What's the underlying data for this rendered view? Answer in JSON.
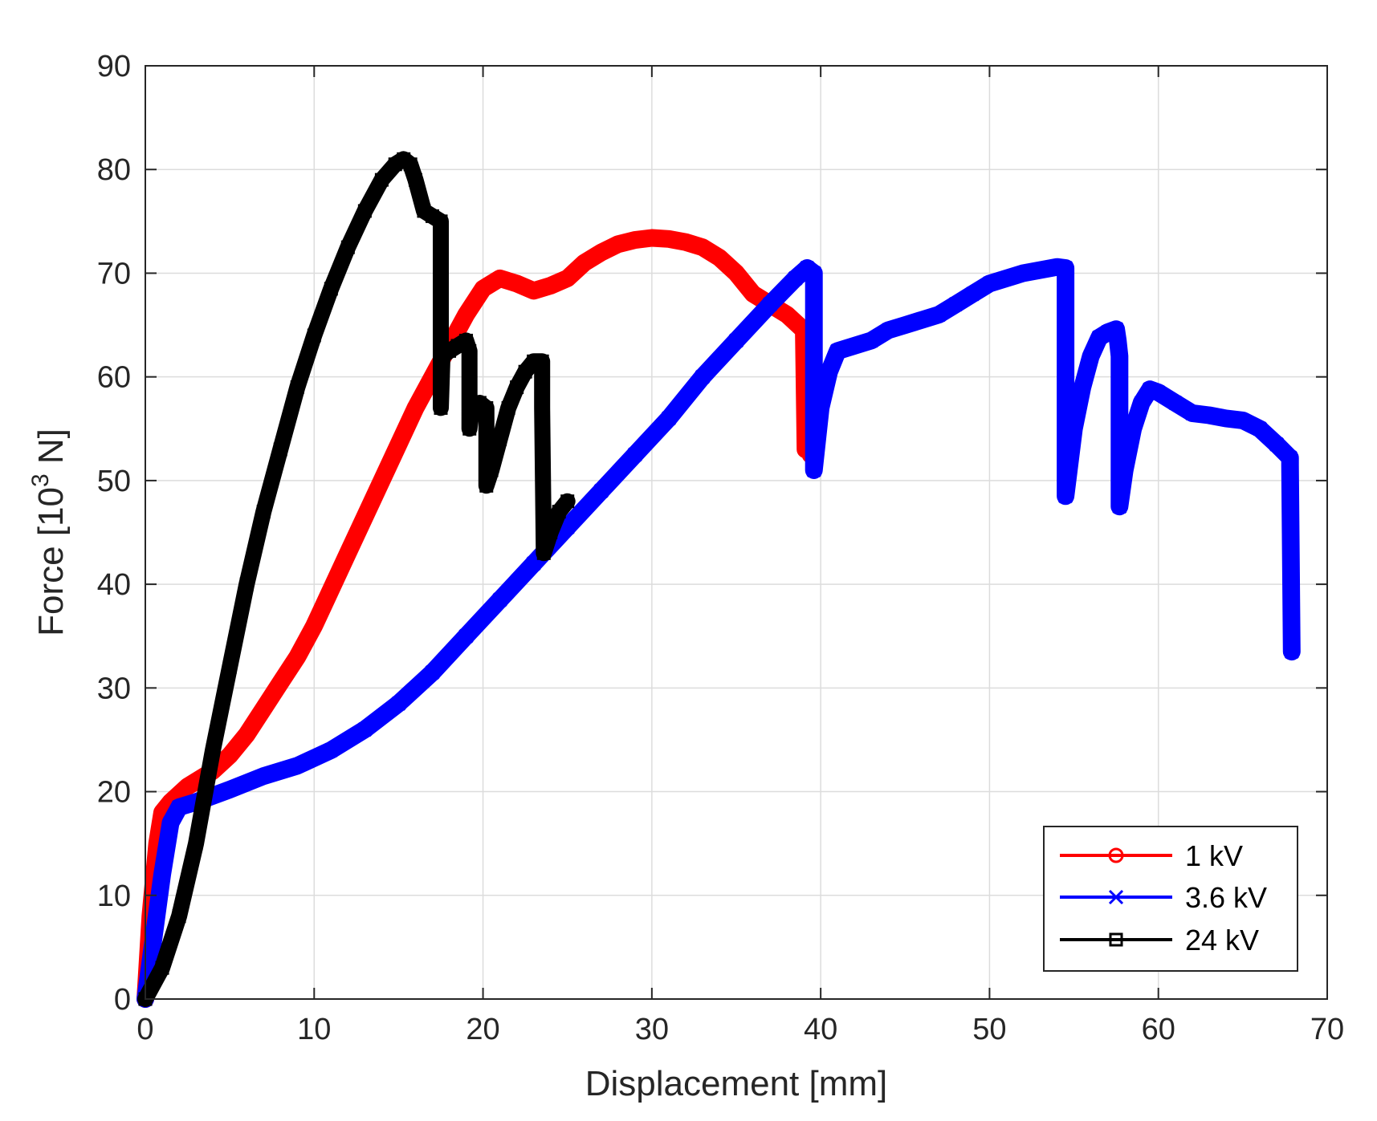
{
  "chart_data": {
    "type": "line",
    "title": "",
    "xlabel": "Displacement [mm]",
    "ylabel_prefix": "Force [10",
    "ylabel_exp": "3",
    "ylabel_suffix": " N]",
    "xlim": [
      0,
      70
    ],
    "ylim": [
      0,
      90
    ],
    "xticks": [
      0,
      10,
      20,
      30,
      40,
      50,
      60,
      70
    ],
    "yticks": [
      0,
      10,
      20,
      30,
      40,
      50,
      60,
      70,
      80,
      90
    ],
    "xtick_labels": [
      "0",
      "10",
      "20",
      "30",
      "40",
      "50",
      "60",
      "70"
    ],
    "ytick_labels": [
      "0",
      "10",
      "20",
      "30",
      "40",
      "50",
      "60",
      "70",
      "80",
      "90"
    ],
    "grid": true,
    "legend_position": "bottom-right",
    "series": [
      {
        "name": "1 kV",
        "color": "#ff0000",
        "marker": "circle",
        "points": [
          [
            0,
            0
          ],
          [
            0.3,
            8
          ],
          [
            0.7,
            15
          ],
          [
            1,
            18
          ],
          [
            1.5,
            19
          ],
          [
            2.5,
            20.5
          ],
          [
            4,
            22
          ],
          [
            5,
            23.5
          ],
          [
            6,
            25.5
          ],
          [
            7,
            28
          ],
          [
            8,
            30.5
          ],
          [
            9,
            33
          ],
          [
            10,
            36
          ],
          [
            12,
            43
          ],
          [
            14,
            50
          ],
          [
            16,
            57
          ],
          [
            18,
            63
          ],
          [
            19,
            66
          ],
          [
            20,
            68.5
          ],
          [
            21,
            69.5
          ],
          [
            22,
            69
          ],
          [
            23,
            68.3
          ],
          [
            24,
            68.8
          ],
          [
            25,
            69.5
          ],
          [
            26,
            71
          ],
          [
            27,
            72
          ],
          [
            28,
            72.8
          ],
          [
            29,
            73.2
          ],
          [
            30,
            73.4
          ],
          [
            31,
            73.3
          ],
          [
            32,
            73
          ],
          [
            33,
            72.5
          ],
          [
            34,
            71.5
          ],
          [
            35,
            70
          ],
          [
            36,
            68
          ],
          [
            37,
            67
          ],
          [
            38,
            66
          ],
          [
            39,
            64.5
          ],
          [
            39.1,
            53
          ],
          [
            39.3,
            56
          ],
          [
            39.4,
            52.5
          ]
        ]
      },
      {
        "name": "3.6 kV",
        "color": "#0000ff",
        "marker": "x",
        "points": [
          [
            0,
            0
          ],
          [
            0.5,
            6
          ],
          [
            1,
            12
          ],
          [
            1.5,
            17
          ],
          [
            2,
            18.5
          ],
          [
            3,
            19
          ],
          [
            5,
            20.2
          ],
          [
            7,
            21.5
          ],
          [
            9,
            22.5
          ],
          [
            11,
            24
          ],
          [
            13,
            26
          ],
          [
            15,
            28.5
          ],
          [
            17,
            31.5
          ],
          [
            19,
            35
          ],
          [
            21,
            38.5
          ],
          [
            23,
            42
          ],
          [
            25,
            45.5
          ],
          [
            27,
            49
          ],
          [
            29,
            52.5
          ],
          [
            31,
            56
          ],
          [
            33,
            60
          ],
          [
            35,
            63.5
          ],
          [
            37,
            67
          ],
          [
            38.5,
            69.5
          ],
          [
            39.2,
            70.5
          ],
          [
            39.6,
            70
          ],
          [
            39.6,
            51
          ],
          [
            40,
            57
          ],
          [
            40.5,
            60.5
          ],
          [
            41,
            62.5
          ],
          [
            42,
            63
          ],
          [
            43,
            63.5
          ],
          [
            44,
            64.5
          ],
          [
            45,
            65
          ],
          [
            46,
            65.5
          ],
          [
            47,
            66
          ],
          [
            48,
            67
          ],
          [
            49,
            68
          ],
          [
            50,
            69
          ],
          [
            51,
            69.5
          ],
          [
            52,
            70
          ],
          [
            53,
            70.3
          ],
          [
            54,
            70.6
          ],
          [
            54.5,
            70.5
          ],
          [
            54.5,
            48.5
          ],
          [
            55,
            55
          ],
          [
            55.5,
            59
          ],
          [
            56,
            62
          ],
          [
            56.5,
            63.8
          ],
          [
            57,
            64.3
          ],
          [
            57.5,
            64.6
          ],
          [
            57.6,
            63.5
          ],
          [
            57.7,
            62
          ],
          [
            57.7,
            47.5
          ],
          [
            58,
            51
          ],
          [
            58.5,
            55
          ],
          [
            59,
            57.5
          ],
          [
            59.5,
            58.8
          ],
          [
            60,
            58.5
          ],
          [
            61,
            57.5
          ],
          [
            62,
            56.5
          ],
          [
            63,
            56.3
          ],
          [
            64,
            56
          ],
          [
            65,
            55.8
          ],
          [
            66,
            55
          ],
          [
            67,
            53.5
          ],
          [
            67.8,
            52.2
          ],
          [
            67.8,
            51.5
          ],
          [
            67.9,
            33.5
          ]
        ]
      },
      {
        "name": "24 kV",
        "color": "#000000",
        "marker": "square",
        "points": [
          [
            0,
            0
          ],
          [
            1,
            3
          ],
          [
            2,
            8
          ],
          [
            3,
            15
          ],
          [
            4,
            24
          ],
          [
            5,
            32
          ],
          [
            6,
            40
          ],
          [
            7,
            47
          ],
          [
            8,
            53
          ],
          [
            9,
            59
          ],
          [
            10,
            64
          ],
          [
            11,
            68.5
          ],
          [
            12,
            72.5
          ],
          [
            13,
            76
          ],
          [
            14,
            79
          ],
          [
            14.8,
            80.5
          ],
          [
            15.3,
            81
          ],
          [
            15.7,
            80.5
          ],
          [
            16,
            79
          ],
          [
            16.5,
            76
          ],
          [
            17,
            75.5
          ],
          [
            17.5,
            75
          ],
          [
            17.5,
            57
          ],
          [
            17.6,
            62
          ],
          [
            18,
            62.5
          ],
          [
            18.5,
            63
          ],
          [
            19,
            63.5
          ],
          [
            19.2,
            62.5
          ],
          [
            19.2,
            55
          ],
          [
            19.3,
            56.5
          ],
          [
            19.8,
            57.5
          ],
          [
            20.2,
            57
          ],
          [
            20.2,
            49.5
          ],
          [
            20.5,
            51
          ],
          [
            21,
            54
          ],
          [
            21.5,
            57
          ],
          [
            22,
            59
          ],
          [
            22.5,
            60.5
          ],
          [
            23,
            61.5
          ],
          [
            23.5,
            61.5
          ],
          [
            23.5,
            57
          ],
          [
            23.6,
            43
          ],
          [
            24,
            45
          ],
          [
            24.5,
            47
          ],
          [
            25,
            48
          ]
        ]
      }
    ]
  }
}
